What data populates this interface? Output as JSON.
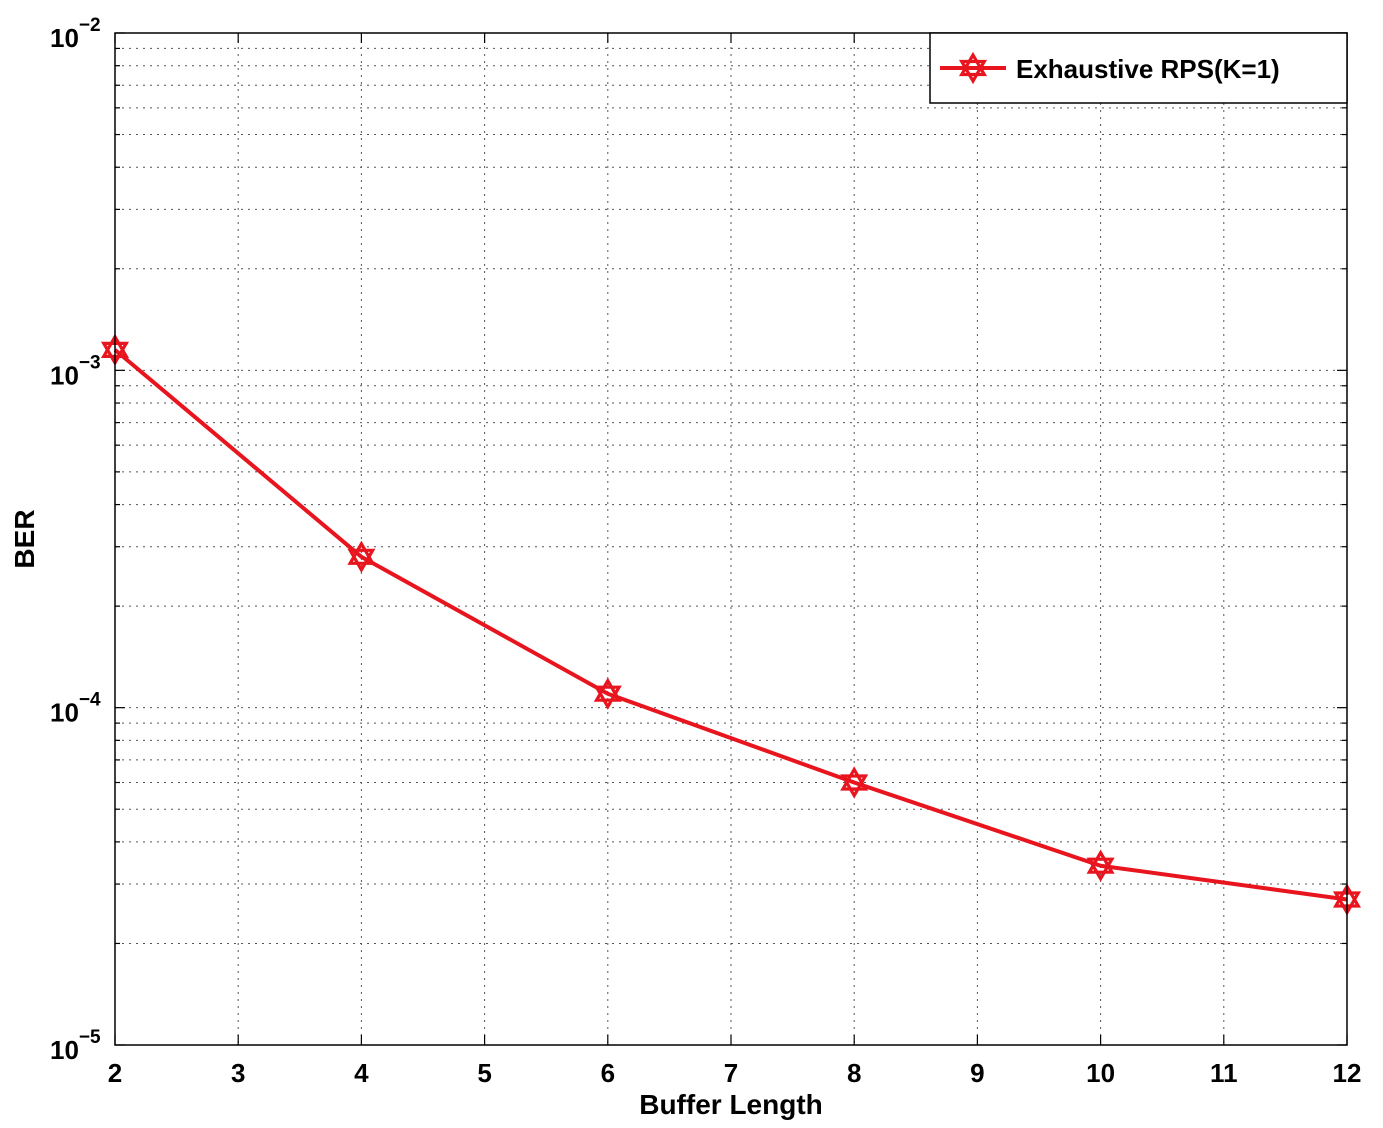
{
  "chart_data": {
    "type": "line",
    "title": "",
    "xlabel": "Buffer Length",
    "ylabel": "BER",
    "xlim": [
      2,
      12
    ],
    "ylim": [
      1e-05,
      0.01
    ],
    "yscale": "log",
    "grid": true,
    "legend_position": "top-right",
    "x_ticks": [
      "2",
      "3",
      "4",
      "5",
      "6",
      "7",
      "8",
      "9",
      "10",
      "11",
      "12"
    ],
    "y_ticks": [
      {
        "base": "10",
        "exp": "−5",
        "value": 1e-05
      },
      {
        "base": "10",
        "exp": "−4",
        "value": 0.0001
      },
      {
        "base": "10",
        "exp": "−3",
        "value": 0.001
      },
      {
        "base": "10",
        "exp": "−2",
        "value": 0.01
      }
    ],
    "series": [
      {
        "name": "Exhaustive RPS(K=1)",
        "color": "#e8141e",
        "marker": "hexagram",
        "x": [
          2,
          4,
          6,
          8,
          10,
          12
        ],
        "y": [
          0.00115,
          0.00028,
          0.00011,
          6e-05,
          3.4e-05,
          2.7e-05
        ]
      }
    ]
  }
}
